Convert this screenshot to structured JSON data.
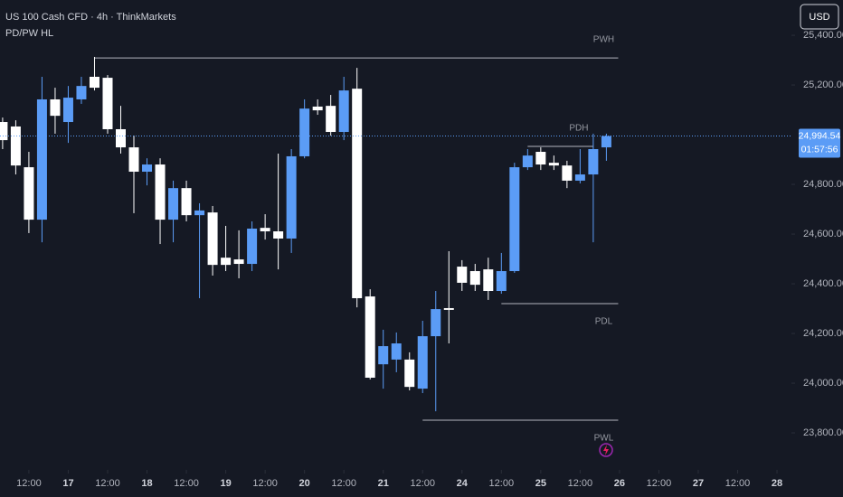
{
  "chart_data": {
    "type": "candlestick",
    "title": "US 100 Cash CFD · 4h · ThinkMarkets",
    "indicator": "PD/PW HL",
    "currency_button": "USD",
    "up_color": "#5b9cf6",
    "down_color": "#ffffff",
    "open": [
      25051,
      25033,
      24869,
      24658,
      25142,
      25051,
      25142,
      25233,
      25229,
      25022,
      24949,
      24851,
      24880,
      24658,
      24785,
      24676,
      24687,
      24505,
      24498,
      24480,
      24625,
      24611,
      24582,
      24913,
      25113,
      25116,
      25011,
      25185,
      24349,
      24076,
      24095,
      24095,
      23978,
      24189,
      24302,
      24469,
      24451,
      24458,
      24371,
      24451,
      24869,
      24931,
      24887,
      24876,
      24815,
      24840,
      24949
    ],
    "high": [
      25069,
      25058,
      24931,
      25233,
      25189,
      25196,
      25233,
      25313,
      25240,
      25116,
      24996,
      24905,
      24905,
      24815,
      24815,
      24724,
      24713,
      24633,
      24615,
      24651,
      24680,
      24924,
      24942,
      25142,
      25142,
      25160,
      25233,
      25269,
      24378,
      24215,
      24204,
      24124,
      24251,
      24371,
      24531,
      24495,
      24480,
      24505,
      24524,
      24887,
      24942,
      24949,
      24916,
      24895,
      24942,
      25004,
      25004
    ],
    "low": [
      24942,
      24840,
      24604,
      24567,
      25004,
      24967,
      25124,
      25178,
      25004,
      24924,
      24684,
      24796,
      24560,
      24567,
      24651,
      24342,
      24433,
      24451,
      24422,
      24451,
      24578,
      24458,
      24524,
      24905,
      25080,
      24996,
      24978,
      24305,
      24015,
      23978,
      24044,
      23971,
      23960,
      23887,
      24160,
      24371,
      24371,
      24335,
      24360,
      24444,
      24858,
      24858,
      24858,
      24785,
      24804,
      24567,
      24895
    ],
    "close": [
      24978,
      24876,
      24658,
      25142,
      25076,
      25149,
      25196,
      25189,
      25022,
      24949,
      24851,
      24880,
      24658,
      24785,
      24676,
      24695,
      24476,
      24476,
      24480,
      24622,
      24611,
      24582,
      24913,
      25105,
      25098,
      25011,
      25178,
      24342,
      24022,
      24149,
      24160,
      23985,
      24189,
      24298,
      24295,
      24404,
      24396,
      24371,
      24451,
      24869,
      24916,
      24880,
      24876,
      24815,
      24840,
      24942,
      24994.54
    ],
    "last_price": {
      "value": 24994.54,
      "label": "24,994.54"
    },
    "countdown": "01:57:56",
    "levels": [
      {
        "name": "PWH",
        "value": 25309,
        "from": 7,
        "to": 46.9
      },
      {
        "name": "PDH",
        "value": 24953,
        "from": 40,
        "to": 45
      },
      {
        "name": "PDL",
        "value": 24320,
        "from": 38,
        "to": 46.9
      },
      {
        "name": "PWL",
        "value": 23851,
        "from": 32,
        "to": 46.9
      }
    ],
    "ylim": [
      23651,
      25542
    ],
    "yticks": [
      {
        "value": 23800,
        "label": "23,800.00"
      },
      {
        "value": 24000,
        "label": "24,000.00"
      },
      {
        "value": 24200,
        "label": "24,200.00"
      },
      {
        "value": 24400,
        "label": "24,400.00"
      },
      {
        "value": 24600,
        "label": "24,600.00"
      },
      {
        "value": 24800,
        "label": "24,800.00"
      },
      {
        "value": 25200,
        "label": "25,200.00"
      },
      {
        "value": 25400,
        "label": "25,400.00"
      }
    ],
    "xlim": [
      -0.2,
      60.1
    ],
    "xticks": [
      {
        "value": 2,
        "label": "12:00"
      },
      {
        "value": 5,
        "label": "17"
      },
      {
        "value": 8,
        "label": "12:00"
      },
      {
        "value": 11,
        "label": "18"
      },
      {
        "value": 14,
        "label": "12:00"
      },
      {
        "value": 17,
        "label": "19"
      },
      {
        "value": 20,
        "label": "12:00"
      },
      {
        "value": 23,
        "label": "20"
      },
      {
        "value": 26,
        "label": "12:00"
      },
      {
        "value": 29,
        "label": "21"
      },
      {
        "value": 32,
        "label": "12:00"
      },
      {
        "value": 35,
        "label": "24"
      },
      {
        "value": 38,
        "label": "12:00"
      },
      {
        "value": 41,
        "label": "25"
      },
      {
        "value": 44,
        "label": "12:00"
      },
      {
        "value": 47,
        "label": "26"
      },
      {
        "value": 50,
        "label": "12:00"
      },
      {
        "value": 53,
        "label": "27"
      },
      {
        "value": 56,
        "label": "12:00"
      },
      {
        "value": 59,
        "label": "28"
      }
    ]
  }
}
